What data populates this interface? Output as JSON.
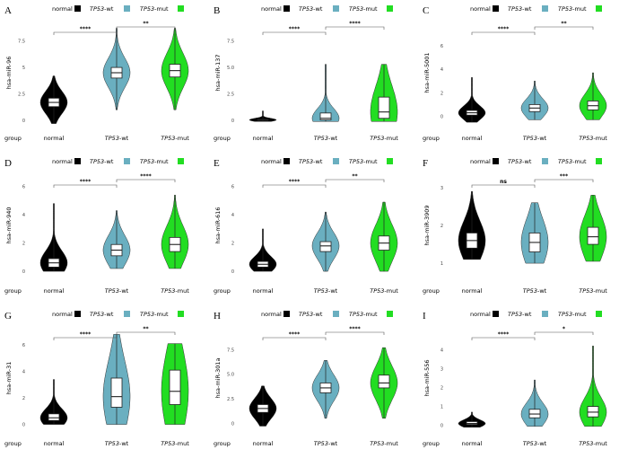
{
  "legend": {
    "normal_label": "normal",
    "wt_label": "-wt",
    "mut_label": "-mut",
    "gene": "TP53"
  },
  "colors": {
    "normal": "#000000",
    "wt": "#6aafc0",
    "mut": "#22dd22",
    "outline": "#333333"
  },
  "group_label": "group",
  "chart_data": [
    {
      "type": "violin",
      "letter": "A",
      "ylabel": "hsa-miR-96",
      "yticks": [
        "0",
        "2.5",
        "5",
        "7.5"
      ],
      "ylim": [
        -0.5,
        9.5
      ],
      "tick_values": [
        0,
        2.5,
        5,
        7.5
      ],
      "categories": [
        "normal",
        "TP53-wt",
        "TP53-mut"
      ],
      "medians": [
        1.7,
        4.5,
        4.7
      ],
      "q1": [
        1.3,
        4.0,
        4.1
      ],
      "q3": [
        2.1,
        5.0,
        5.3
      ],
      "vmin": [
        -0.3,
        1.0,
        1.0
      ],
      "vmax": [
        4.2,
        8.7,
        8.7
      ],
      "sig": [
        {
          "pair": "normal-wt",
          "label": "****"
        },
        {
          "pair": "wt-mut",
          "label": "**"
        }
      ]
    },
    {
      "type": "violin",
      "letter": "B",
      "ylabel": "hsa-miR-137",
      "yticks": [
        "0",
        "2.5",
        "5.0",
        "7.5"
      ],
      "ylim": [
        -0.5,
        9.5
      ],
      "tick_values": [
        0,
        2.5,
        5,
        7.5
      ],
      "categories": [
        "normal",
        "TP53-wt",
        "TP53-mut"
      ],
      "medians": [
        0.05,
        0.2,
        0.8
      ],
      "q1": [
        0,
        0.05,
        0.2
      ],
      "q3": [
        0.1,
        0.7,
        2.2
      ],
      "vmin": [
        -0.1,
        -0.1,
        -0.1
      ],
      "vmax": [
        0.9,
        5.3,
        5.3
      ],
      "sig": [
        {
          "pair": "normal-wt",
          "label": "****"
        },
        {
          "pair": "wt-mut",
          "label": "****"
        }
      ]
    },
    {
      "type": "violin",
      "letter": "C",
      "ylabel": "hsa-miR-5001",
      "yticks": [
        "0",
        "2",
        "4",
        "6"
      ],
      "ylim": [
        -0.8,
        8.2
      ],
      "tick_values": [
        0,
        2,
        4,
        6
      ],
      "categories": [
        "normal",
        "TP53-wt",
        "TP53-mut"
      ],
      "medians": [
        0.3,
        0.7,
        0.9
      ],
      "q1": [
        0.1,
        0.4,
        0.55
      ],
      "q3": [
        0.5,
        1.0,
        1.3
      ],
      "vmin": [
        -0.5,
        -0.3,
        -0.3
      ],
      "vmax": [
        3.3,
        3.0,
        3.7
      ],
      "sig": [
        {
          "pair": "normal-wt",
          "label": "****"
        },
        {
          "pair": "wt-mut",
          "label": "**"
        }
      ]
    },
    {
      "type": "violin",
      "letter": "D",
      "ylabel": "hsa-miR-940",
      "yticks": [
        "0",
        "2",
        "4",
        "6"
      ],
      "ylim": [
        -0.5,
        7
      ],
      "tick_values": [
        0,
        2,
        4,
        6
      ],
      "categories": [
        "normal",
        "TP53-wt",
        "TP53-mut"
      ],
      "medians": [
        0.6,
        1.5,
        1.9
      ],
      "q1": [
        0.3,
        1.1,
        1.4
      ],
      "q3": [
        0.9,
        1.9,
        2.4
      ],
      "vmin": [
        0,
        0.2,
        0.2
      ],
      "vmax": [
        4.8,
        4.3,
        5.4
      ],
      "sig": [
        {
          "pair": "normal-wt",
          "label": "****"
        },
        {
          "pair": "wt-mut",
          "label": "****"
        }
      ]
    },
    {
      "type": "violin",
      "letter": "E",
      "ylabel": "hsa-miR-616",
      "yticks": [
        "0",
        "2",
        "4",
        "6"
      ],
      "ylim": [
        -0.5,
        7
      ],
      "tick_values": [
        0,
        2,
        4,
        6
      ],
      "categories": [
        "normal",
        "TP53-wt",
        "TP53-mut"
      ],
      "medians": [
        0.5,
        1.8,
        2.0
      ],
      "q1": [
        0.3,
        1.4,
        1.5
      ],
      "q3": [
        0.7,
        2.1,
        2.5
      ],
      "vmin": [
        0,
        0,
        0
      ],
      "vmax": [
        3.0,
        4.2,
        4.9
      ],
      "sig": [
        {
          "pair": "normal-wt",
          "label": "****"
        },
        {
          "pair": "wt-mut",
          "label": "**"
        }
      ]
    },
    {
      "type": "violin",
      "letter": "F",
      "ylabel": "hsa-miR-3909",
      "yticks": [
        "1",
        "2",
        "3"
      ],
      "ylim": [
        0.6,
        3.4
      ],
      "tick_values": [
        1,
        2,
        3
      ],
      "categories": [
        "normal",
        "TP53-wt",
        "TP53-mut"
      ],
      "medians": [
        1.6,
        1.55,
        1.7
      ],
      "q1": [
        1.4,
        1.3,
        1.5
      ],
      "q3": [
        1.8,
        1.8,
        1.95
      ],
      "vmin": [
        1.1,
        1.0,
        1.05
      ],
      "vmax": [
        2.9,
        2.6,
        2.8
      ],
      "sig": [
        {
          "pair": "normal-wt",
          "label": "ns"
        },
        {
          "pair": "wt-mut",
          "label": "***"
        }
      ]
    },
    {
      "type": "violin",
      "letter": "G",
      "ylabel": "hsa-miR-31",
      "yticks": [
        "0",
        "2",
        "4",
        "6"
      ],
      "ylim": [
        -0.5,
        7.5
      ],
      "tick_values": [
        0,
        2,
        4,
        6
      ],
      "categories": [
        "normal",
        "TP53-wt",
        "TP53-mut"
      ],
      "medians": [
        0.5,
        2.1,
        2.5
      ],
      "q1": [
        0.3,
        1.3,
        1.5
      ],
      "q3": [
        0.8,
        3.5,
        4.1
      ],
      "vmin": [
        0,
        0,
        0
      ],
      "vmax": [
        3.4,
        6.8,
        6.1
      ],
      "sig": [
        {
          "pair": "normal-wt",
          "label": "****"
        },
        {
          "pair": "wt-mut",
          "label": "**"
        }
      ]
    },
    {
      "type": "violin",
      "letter": "H",
      "ylabel": "hsa-miR-301a",
      "yticks": [
        "0",
        "2.5",
        "5.0",
        "7.5"
      ],
      "ylim": [
        -0.8,
        10
      ],
      "tick_values": [
        0,
        2.5,
        5,
        7.5
      ],
      "categories": [
        "normal",
        "TP53-wt",
        "TP53-mut"
      ],
      "medians": [
        1.5,
        3.6,
        4.1
      ],
      "q1": [
        1.1,
        3.1,
        3.6
      ],
      "q3": [
        1.9,
        4.1,
        4.9
      ],
      "vmin": [
        -0.3,
        0.5,
        0.5
      ],
      "vmax": [
        3.8,
        6.4,
        7.7
      ],
      "sig": [
        {
          "pair": "normal-wt",
          "label": "****"
        },
        {
          "pair": "wt-mut",
          "label": "****"
        }
      ]
    },
    {
      "type": "violin",
      "letter": "I",
      "ylabel": "hsa-miR-556",
      "yticks": [
        "0",
        "1",
        "2",
        "3",
        "4"
      ],
      "ylim": [
        -0.3,
        5.3
      ],
      "tick_values": [
        0,
        1,
        2,
        3,
        4
      ],
      "categories": [
        "normal",
        "TP53-wt",
        "TP53-mut"
      ],
      "medians": [
        0.1,
        0.6,
        0.7
      ],
      "q1": [
        0.05,
        0.4,
        0.45
      ],
      "q3": [
        0.2,
        0.85,
        1.0
      ],
      "vmin": [
        -0.1,
        -0.05,
        -0.05
      ],
      "vmax": [
        0.7,
        2.4,
        4.2
      ],
      "sig": [
        {
          "pair": "normal-wt",
          "label": "****"
        },
        {
          "pair": "wt-mut",
          "label": "*"
        }
      ]
    }
  ]
}
